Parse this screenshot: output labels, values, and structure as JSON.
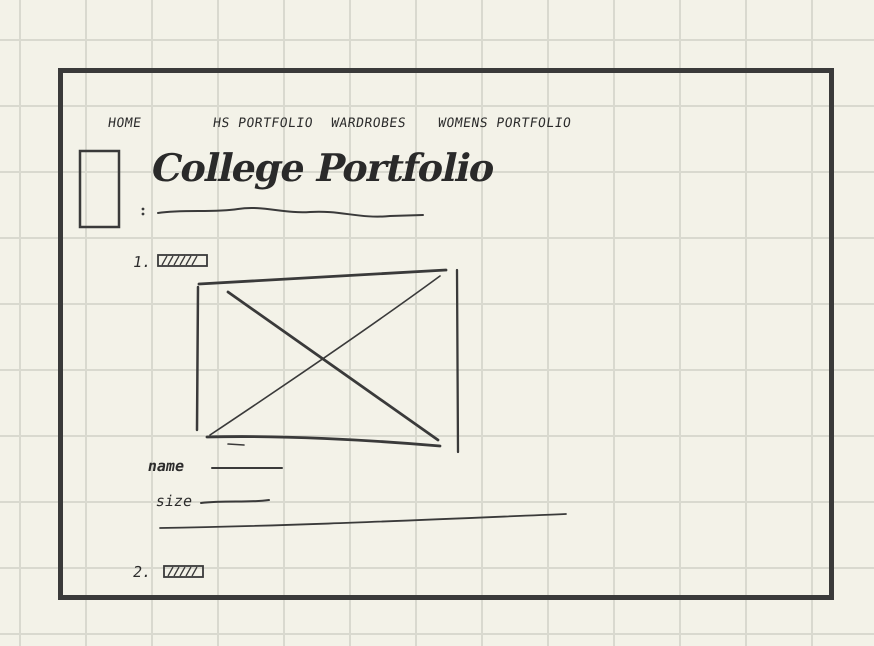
{
  "nav": {
    "items": [
      {
        "label": "HOME"
      },
      {
        "label": "HS PORTFOLIO"
      },
      {
        "label": "WARDROBES"
      },
      {
        "label": "WOMENS PORTFOLIO"
      }
    ]
  },
  "page_title": "College Portfolio",
  "items": [
    {
      "number": "1."
    },
    {
      "number": "2."
    }
  ],
  "product": {
    "name_label": "name",
    "size_label": "size"
  }
}
